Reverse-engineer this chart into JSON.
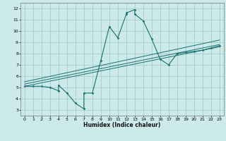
{
  "xlabel": "Humidex (Indice chaleur)",
  "bg_color": "#cceaea",
  "grid_color": "#aacccc",
  "line_color": "#1a7070",
  "xlim": [
    -0.5,
    23.5
  ],
  "ylim": [
    2.5,
    12.5
  ],
  "xticks": [
    0,
    1,
    2,
    3,
    4,
    5,
    6,
    7,
    8,
    9,
    10,
    11,
    12,
    13,
    14,
    15,
    16,
    17,
    18,
    19,
    20,
    21,
    22,
    23
  ],
  "yticks": [
    3,
    4,
    5,
    6,
    7,
    8,
    9,
    10,
    11,
    12
  ],
  "scatter_x": [
    0,
    1,
    2,
    3,
    4,
    4,
    5,
    6,
    7,
    7,
    8,
    9,
    10,
    11,
    12,
    12,
    13,
    13,
    14,
    15,
    16,
    17,
    18,
    19,
    20,
    21,
    22,
    23
  ],
  "scatter_y": [
    5.1,
    5.1,
    5.1,
    5.0,
    4.7,
    5.2,
    4.5,
    3.6,
    3.1,
    4.5,
    4.5,
    7.4,
    10.4,
    9.4,
    11.5,
    11.6,
    11.9,
    11.5,
    10.9,
    9.3,
    7.5,
    7.0,
    8.0,
    8.1,
    8.2,
    8.3,
    8.5,
    8.7
  ],
  "line1_x": [
    0,
    23
  ],
  "line1_y": [
    5.3,
    8.8
  ],
  "line2_x": [
    0,
    23
  ],
  "line2_y": [
    5.1,
    8.6
  ],
  "line3_x": [
    0,
    23
  ],
  "line3_y": [
    5.5,
    9.2
  ]
}
